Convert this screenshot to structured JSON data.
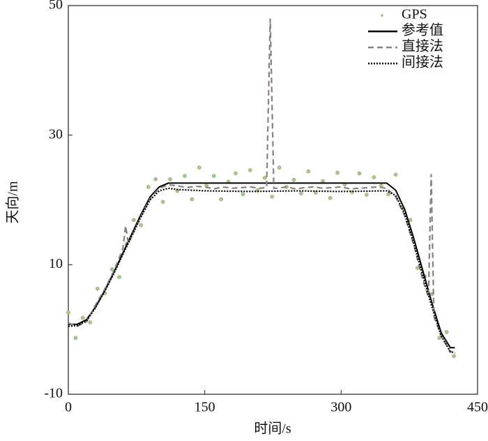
{
  "chart_data": {
    "type": "line",
    "xlabel": "时间/s",
    "ylabel": "天向/m",
    "xlim": [
      0,
      450
    ],
    "xticks": [
      0,
      150,
      300,
      450
    ],
    "ylim": [
      -10,
      50
    ],
    "yticks": [
      -10,
      10,
      30,
      50
    ],
    "legend": "upper right",
    "series": [
      {
        "name": "GPS",
        "color": "#a8c98a",
        "style": "points",
        "x": [
          0,
          8,
          16,
          24,
          32,
          40,
          48,
          56,
          64,
          72,
          80,
          88,
          96,
          104,
          112,
          120,
          128,
          136,
          144,
          152,
          160,
          168,
          176,
          184,
          192,
          200,
          208,
          216,
          224,
          232,
          240,
          248,
          256,
          264,
          272,
          280,
          288,
          296,
          304,
          312,
          320,
          328,
          336,
          344,
          352,
          360,
          368,
          376,
          384,
          392,
          400,
          408,
          416,
          424
        ],
        "values": [
          2.6,
          -1.3,
          1.8,
          1.1,
          6.3,
          5.6,
          9.3,
          8.1,
          13.2,
          16.9,
          16.1,
          22,
          23.2,
          19.7,
          23.2,
          21.4,
          23.7,
          20.1,
          25,
          22.2,
          23.7,
          20.1,
          22.8,
          24.1,
          20.9,
          24.6,
          21.5,
          23.4,
          20.5,
          25,
          22,
          23.1,
          21,
          24.4,
          21.1,
          22.9,
          20.3,
          24.2,
          22.4,
          21.2,
          24.1,
          20.8,
          23.5,
          22.2,
          20.9,
          23.9,
          18.7,
          16.9,
          9.5,
          8.2,
          5.5,
          -1.3,
          -0.4,
          -4.1
        ]
      },
      {
        "name": "参考值",
        "color": "#000000",
        "style": "solid",
        "x": [
          0,
          10,
          20,
          30,
          40,
          50,
          60,
          70,
          80,
          90,
          100,
          110,
          350,
          360,
          370,
          380,
          390,
          400,
          410,
          420,
          425
        ],
        "values": [
          0.8,
          0.8,
          1.5,
          3.5,
          6,
          8.8,
          11.8,
          14.8,
          17.8,
          20.5,
          22,
          22.6,
          22.6,
          21.5,
          18.5,
          14,
          9,
          4,
          -0.5,
          -2.8,
          -2.8
        ]
      },
      {
        "name": "直接法",
        "color": "#8c7f7f",
        "style": "dashed",
        "x": [
          0,
          10,
          20,
          30,
          40,
          50,
          60,
          63,
          66,
          70,
          80,
          90,
          100,
          110,
          120,
          130,
          140,
          150,
          160,
          170,
          180,
          190,
          200,
          210,
          218,
          222,
          226,
          230,
          240,
          250,
          260,
          270,
          280,
          290,
          300,
          310,
          320,
          330,
          340,
          350,
          360,
          370,
          380,
          390,
          396,
          399,
          402,
          410,
          420,
          425
        ],
        "values": [
          1,
          0.5,
          1.2,
          3.8,
          6.2,
          9,
          12.5,
          16,
          13.2,
          14.5,
          17.5,
          20.2,
          21.8,
          22.3,
          22.2,
          21.9,
          22.1,
          22,
          21.7,
          22,
          21.8,
          21.9,
          22,
          21.8,
          21.9,
          48,
          21.8,
          21.8,
          22,
          21.7,
          21.9,
          22,
          21.8,
          21.9,
          22,
          21.7,
          21.8,
          21.9,
          22,
          21.8,
          20.5,
          17.5,
          13,
          7.5,
          5,
          24,
          2,
          -1,
          -3.5,
          -3.2
        ]
      },
      {
        "name": "间接法",
        "color": "#000000",
        "style": "dotted",
        "x": [
          0,
          10,
          20,
          30,
          40,
          50,
          60,
          70,
          80,
          90,
          100,
          110,
          120,
          150,
          200,
          250,
          300,
          350,
          360,
          370,
          380,
          390,
          400,
          410,
          420,
          425
        ],
        "values": [
          0.5,
          0.6,
          1.3,
          3.4,
          5.9,
          8.6,
          11.6,
          14.5,
          17.4,
          20,
          21.4,
          21.8,
          21.6,
          21.4,
          21.3,
          21.4,
          21.3,
          21.4,
          20.7,
          17.8,
          13.2,
          8.2,
          3.4,
          -1,
          -3.4,
          -3.6
        ]
      }
    ]
  }
}
